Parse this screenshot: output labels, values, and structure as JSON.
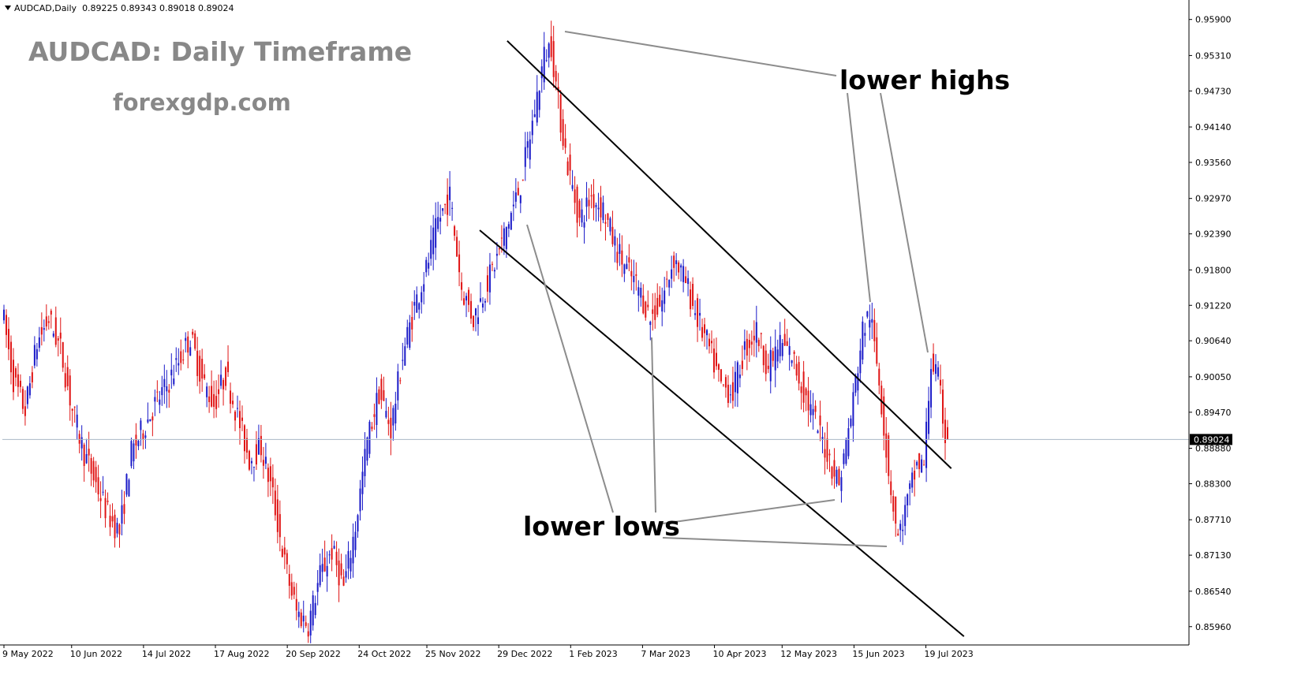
{
  "header": {
    "symbol_label": "AUDCAD,Daily",
    "ohlc_label": "0.89225 0.89343 0.89018 0.89024"
  },
  "overlay": {
    "title": "AUDCAD: Daily Timeframe",
    "site": "forexgdp.com"
  },
  "annotations": {
    "highs": "lower highs",
    "lows": "lower lows"
  },
  "colors": {
    "bull": "#1a1ac8",
    "bear": "#e01414",
    "current_line": "#a9b7c6",
    "channel": "#000000",
    "pointer": "#8c8c8c",
    "title": "#888888"
  },
  "chart_data": {
    "type": "candlestick",
    "symbol": "AUDCAD",
    "timeframe": "Daily",
    "ohlc": {
      "open": 0.89225,
      "high": 0.89343,
      "low": 0.89018,
      "close": 0.89024
    },
    "current_price": "0.89024",
    "ylim": [
      0.8566,
      0.9618
    ],
    "y_ticks": [
      "0.95900",
      "0.95310",
      "0.94730",
      "0.94140",
      "0.93560",
      "0.92970",
      "0.92390",
      "0.91800",
      "0.91220",
      "0.90640",
      "0.90050",
      "0.89470",
      "0.88880",
      "0.88300",
      "0.87710",
      "0.87130",
      "0.86540",
      "0.85960"
    ],
    "x_ticks": [
      "9 May 2022",
      "10 Jun 2022",
      "14 Jul 2022",
      "17 Aug 2022",
      "20 Sep 2022",
      "24 Oct 2022",
      "25 Nov 2022",
      "29 Dec 2022",
      "1 Feb 2023",
      "7 Mar 2023",
      "10 Apr 2023",
      "12 May 2023",
      "15 Jun 2023",
      "19 Jul 2023"
    ],
    "series_anchors": [
      [
        0,
        0.912
      ],
      [
        5,
        0.9
      ],
      [
        10,
        0.895
      ],
      [
        15,
        0.906
      ],
      [
        20,
        0.91
      ],
      [
        25,
        0.905
      ],
      [
        30,
        0.895
      ],
      [
        35,
        0.888
      ],
      [
        40,
        0.883
      ],
      [
        45,
        0.878
      ],
      [
        50,
        0.875
      ],
      [
        55,
        0.888
      ],
      [
        60,
        0.892
      ],
      [
        65,
        0.896
      ],
      [
        70,
        0.899
      ],
      [
        75,
        0.903
      ],
      [
        80,
        0.907
      ],
      [
        85,
        0.9
      ],
      [
        90,
        0.896
      ],
      [
        95,
        0.901
      ],
      [
        100,
        0.894
      ],
      [
        105,
        0.887
      ],
      [
        110,
        0.889
      ],
      [
        115,
        0.881
      ],
      [
        120,
        0.87
      ],
      [
        125,
        0.862
      ],
      [
        130,
        0.86
      ],
      [
        135,
        0.868
      ],
      [
        140,
        0.872
      ],
      [
        145,
        0.866
      ],
      [
        150,
        0.876
      ],
      [
        155,
        0.89
      ],
      [
        160,
        0.898
      ],
      [
        165,
        0.892
      ],
      [
        170,
        0.904
      ],
      [
        175,
        0.912
      ],
      [
        180,
        0.918
      ],
      [
        185,
        0.926
      ],
      [
        190,
        0.93
      ],
      [
        195,
        0.915
      ],
      [
        200,
        0.91
      ],
      [
        205,
        0.915
      ],
      [
        210,
        0.92
      ],
      [
        215,
        0.926
      ],
      [
        220,
        0.932
      ],
      [
        225,
        0.942
      ],
      [
        230,
        0.953
      ],
      [
        233,
        0.955
      ],
      [
        236,
        0.945
      ],
      [
        240,
        0.935
      ],
      [
        245,
        0.926
      ],
      [
        250,
        0.93
      ],
      [
        255,
        0.928
      ],
      [
        260,
        0.922
      ],
      [
        265,
        0.918
      ],
      [
        270,
        0.915
      ],
      [
        275,
        0.91
      ],
      [
        280,
        0.913
      ],
      [
        285,
        0.92
      ],
      [
        290,
        0.916
      ],
      [
        295,
        0.91
      ],
      [
        300,
        0.905
      ],
      [
        305,
        0.899
      ],
      [
        310,
        0.898
      ],
      [
        315,
        0.905
      ],
      [
        320,
        0.908
      ],
      [
        325,
        0.902
      ],
      [
        330,
        0.906
      ],
      [
        335,
        0.904
      ],
      [
        340,
        0.898
      ],
      [
        345,
        0.893
      ],
      [
        350,
        0.888
      ],
      [
        355,
        0.883
      ],
      [
        360,
        0.894
      ],
      [
        365,
        0.908
      ],
      [
        368,
        0.911
      ],
      [
        372,
        0.9
      ],
      [
        376,
        0.885
      ],
      [
        380,
        0.874
      ],
      [
        384,
        0.88
      ],
      [
        388,
        0.886
      ],
      [
        391,
        0.886
      ],
      [
        394,
        0.903
      ],
      [
        397,
        0.9
      ],
      [
        400,
        0.891
      ],
      [
        401,
        0.8902
      ]
    ],
    "channel_upper": [
      [
        "2023-01-02",
        0.9555
      ],
      [
        "2023-07-31",
        0.8855
      ]
    ],
    "channel_lower": [
      [
        "2022-12-20",
        0.9245
      ],
      [
        "2023-08-06",
        0.858
      ]
    ],
    "grid": false
  }
}
